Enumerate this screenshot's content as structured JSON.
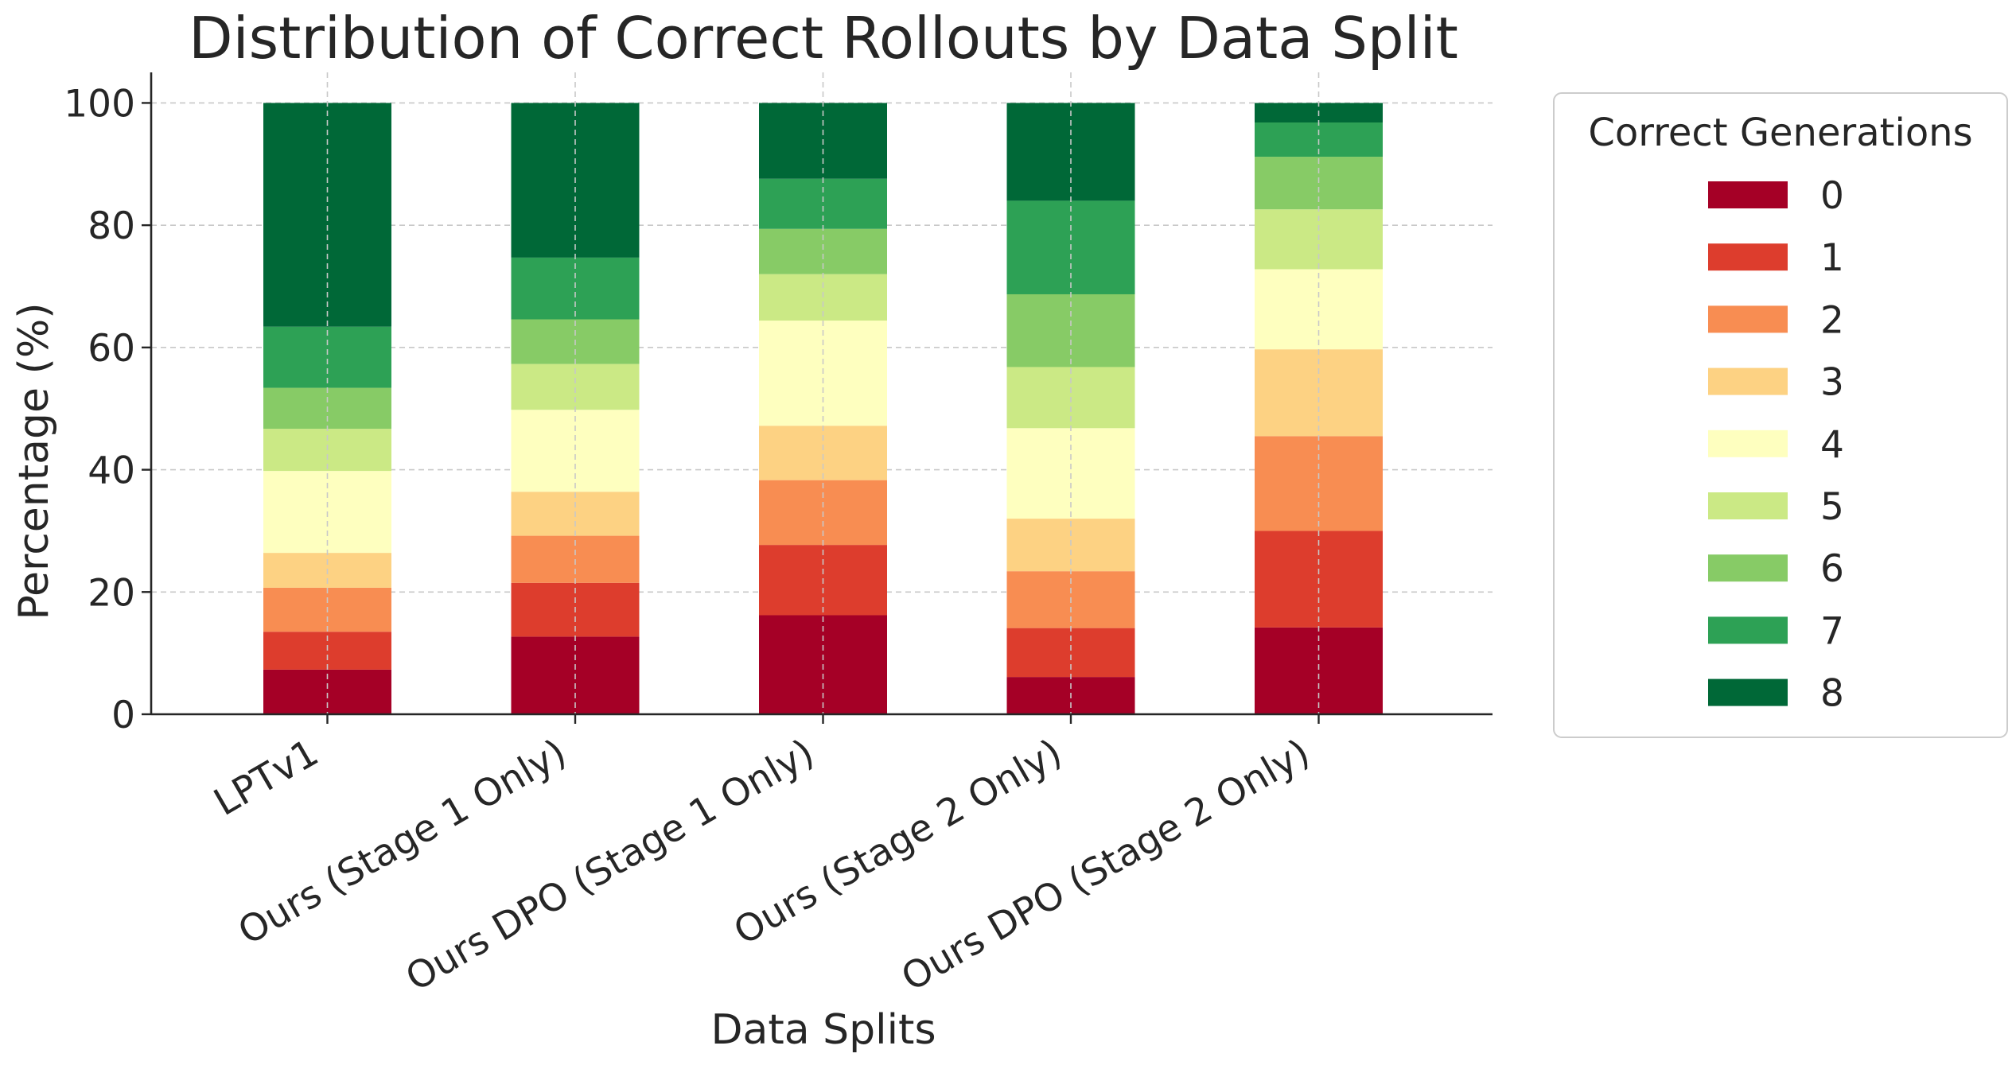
{
  "chart_data": {
    "type": "bar",
    "stacked": true,
    "title": "Distribution of Correct Rollouts by Data Split",
    "xlabel": "Data Splits",
    "ylabel": "Percentage (%)",
    "ylim": [
      0,
      105
    ],
    "yticks": [
      0,
      20,
      40,
      60,
      80,
      100
    ],
    "grid": true,
    "legend_title": "Correct Generations",
    "legend_position": "outside-right",
    "categories": [
      "LPTv1",
      "Ours (Stage 1 Only)",
      "Ours DPO (Stage 1 Only)",
      "Ours (Stage 2 Only)",
      "Ours DPO (Stage 2 Only)"
    ],
    "series": [
      {
        "name": "0",
        "color": "#a50026",
        "values": [
          7.3,
          12.7,
          16.2,
          6.1,
          14.2
        ]
      },
      {
        "name": "1",
        "color": "#dd3d2d",
        "values": [
          6.2,
          8.8,
          11.5,
          8.0,
          15.8
        ]
      },
      {
        "name": "2",
        "color": "#f88d52",
        "values": [
          7.2,
          7.7,
          10.6,
          9.3,
          15.5
        ]
      },
      {
        "name": "3",
        "color": "#fdd283",
        "values": [
          5.7,
          7.2,
          8.9,
          8.6,
          14.2
        ]
      },
      {
        "name": "4",
        "color": "#feffbf",
        "values": [
          13.4,
          13.4,
          17.2,
          14.8,
          13.1
        ]
      },
      {
        "name": "5",
        "color": "#cbe985",
        "values": [
          6.9,
          7.5,
          7.6,
          10.0,
          9.8
        ]
      },
      {
        "name": "6",
        "color": "#87cb66",
        "values": [
          6.7,
          7.3,
          7.4,
          11.9,
          8.6
        ]
      },
      {
        "name": "7",
        "color": "#2da155",
        "values": [
          10.0,
          10.1,
          8.2,
          15.3,
          5.6
        ]
      },
      {
        "name": "8",
        "color": "#006837",
        "values": [
          36.6,
          25.3,
          12.4,
          16.0,
          3.2
        ]
      }
    ]
  }
}
